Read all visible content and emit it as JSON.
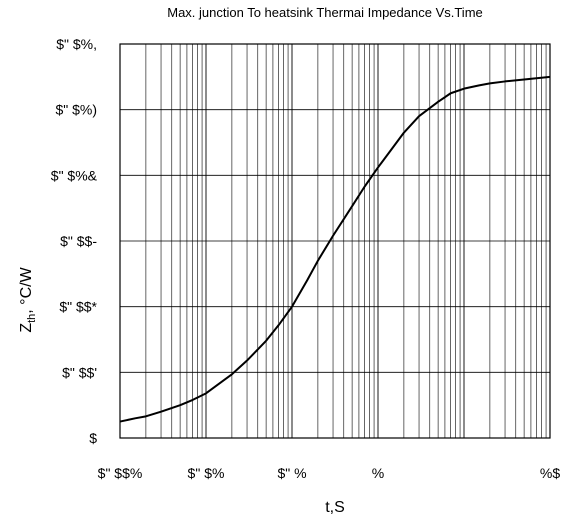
{
  "chart_data": {
    "type": "line",
    "title": "Max. junction To heatsink Thermai Impedance Vs.Time",
    "xlabel": "t,S",
    "ylabel": {
      "main": "Z",
      "sub": "th",
      "rest": ", °C/W"
    },
    "x_scale": "log",
    "xlim": [
      0.0001,
      10
    ],
    "ylim": [
      0,
      0.6
    ],
    "grid": true,
    "x_ticks": [
      {
        "value": 0.0001,
        "label": "$\" $$%"
      },
      {
        "value": 0.001,
        "label": "$\" $%"
      },
      {
        "value": 0.01,
        "label": "$\" %"
      },
      {
        "value": 0.1,
        "label": "%"
      },
      {
        "value": 10,
        "label": "%$"
      }
    ],
    "y_ticks": [
      {
        "value": 0,
        "label": "$"
      },
      {
        "value": 0.1,
        "label": "$\" $$'"
      },
      {
        "value": 0.2,
        "label": "$\" $$*"
      },
      {
        "value": 0.3,
        "label": "$\" $$-"
      },
      {
        "value": 0.4,
        "label": "$\" $%&"
      },
      {
        "value": 0.5,
        "label": "$\" $%)"
      },
      {
        "value": 0.6,
        "label": "$\" $%,"
      }
    ],
    "series": [
      {
        "color": "#000000",
        "points": [
          [
            0.0001,
            0.025
          ],
          [
            0.00015,
            0.03
          ],
          [
            0.0002,
            0.033
          ],
          [
            0.0003,
            0.04
          ],
          [
            0.0005,
            0.05
          ],
          [
            0.0007,
            0.058
          ],
          [
            0.001,
            0.068
          ],
          [
            0.0015,
            0.085
          ],
          [
            0.002,
            0.097
          ],
          [
            0.003,
            0.118
          ],
          [
            0.005,
            0.148
          ],
          [
            0.007,
            0.172
          ],
          [
            0.01,
            0.2
          ],
          [
            0.015,
            0.24
          ],
          [
            0.02,
            0.27
          ],
          [
            0.03,
            0.308
          ],
          [
            0.05,
            0.353
          ],
          [
            0.07,
            0.383
          ],
          [
            0.1,
            0.412
          ],
          [
            0.15,
            0.443
          ],
          [
            0.2,
            0.465
          ],
          [
            0.3,
            0.49
          ],
          [
            0.5,
            0.512
          ],
          [
            0.7,
            0.525
          ],
          [
            1,
            0.532
          ],
          [
            1.5,
            0.537
          ],
          [
            2,
            0.54
          ],
          [
            3,
            0.543
          ],
          [
            5,
            0.546
          ],
          [
            10,
            0.55
          ]
        ]
      }
    ]
  }
}
